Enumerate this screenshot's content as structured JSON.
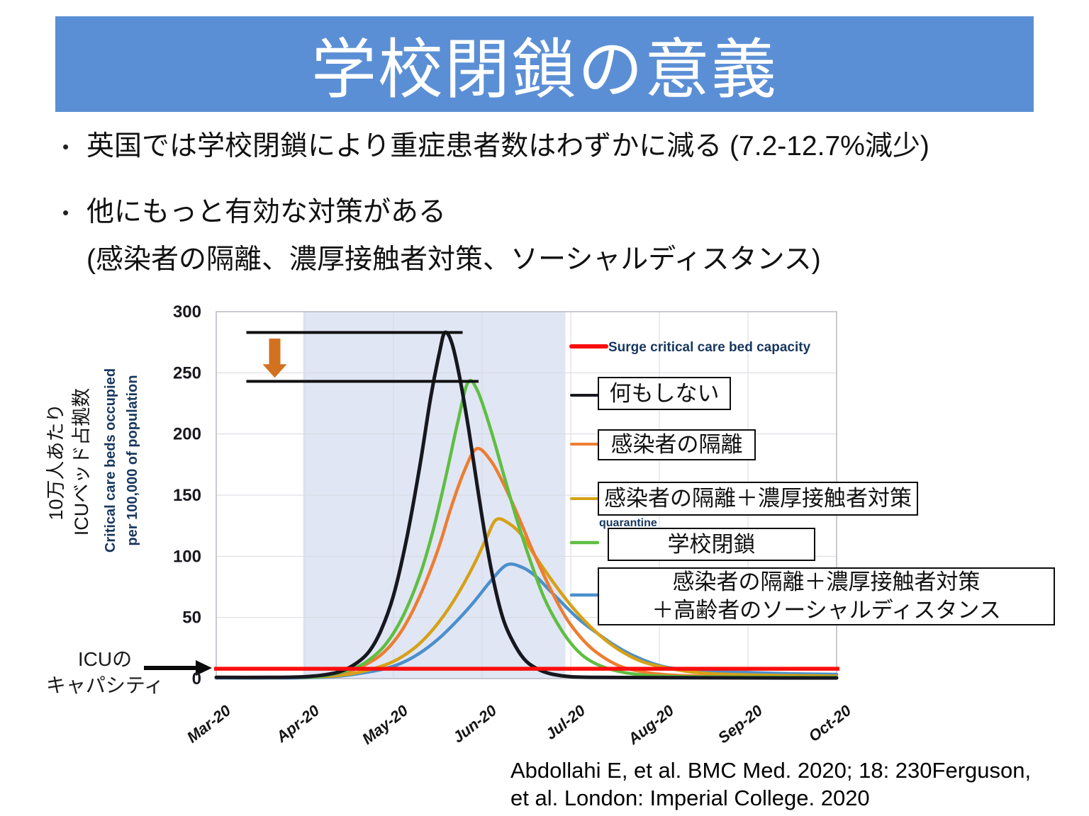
{
  "slide": {
    "title": "学校閉鎖の意義",
    "bullet_marker": "•",
    "bullet1": "英国では学校閉鎖により重症患者数はわずかに減る (7.2-12.7%減少)",
    "bullet2": "他にもっと有効な対策がある",
    "bullet2_detail": "(感染者の隔離、濃厚接触者対策、ソーシャルディスタンス)",
    "citation_line1": "Abdollahi E, et al. BMC Med. 2020; 18: 230Ferguson,",
    "citation_line2": "et al. London: Imperial College. 2020",
    "header_bg": "#5B8FD5",
    "header_text_color": "#FFFFFF"
  },
  "chart_labels": {
    "y_axis_jp_line1": "10万人あたり",
    "y_axis_jp_line2": "ICUベッド占拠数",
    "y_axis_en_line1": "Critical care beds occupied",
    "y_axis_en_line2": "per 100,000 of population",
    "icu_capacity_line1": "ICUの",
    "icu_capacity_line2": "キャパシティ",
    "surge_legend": "Surge critical care bed capacity",
    "covered_text_remnant": "quarantine",
    "legend_box_labels": {
      "do_nothing": "何もしない",
      "case_isolation": "感染者の隔離",
      "isolation_contact": "感染者の隔離＋濃厚接触者対策",
      "school_closure": "学校閉鎖",
      "combo_line1": "感染者の隔離＋濃厚接触者対策",
      "combo_line2": "＋高齢者のソーシャルディスタンス"
    }
  },
  "chart_data": {
    "type": "line",
    "title": "",
    "xlabel": "",
    "ylabel": "Critical care beds occupied per 100,000 of population",
    "x_ticks": [
      "Mar-20",
      "Apr-20",
      "May-20",
      "Jun-20",
      "Jul-20",
      "Aug-20",
      "Sep-20",
      "Oct-20"
    ],
    "x_range": [
      0,
      7
    ],
    "ylim": [
      0,
      300
    ],
    "y_ticks": [
      0,
      50,
      100,
      150,
      200,
      250,
      300
    ],
    "grid": true,
    "highlight_band": {
      "from_x": 0.98,
      "to_x": 3.94,
      "color": "#E0E6F4"
    },
    "capacity_line": {
      "label": "Surge critical care bed capacity",
      "value": 8,
      "color": "#FB0D0D"
    },
    "series_draw_order": [
      4,
      2,
      1,
      3,
      0
    ],
    "series": [
      {
        "id": "do-nothing",
        "label": "何もしない",
        "color": "#17171F",
        "width": 5,
        "peak": {
          "x": 2.58,
          "value": 283
        },
        "points": [
          [
            0,
            1
          ],
          [
            0.6,
            1
          ],
          [
            1.0,
            1.5
          ],
          [
            1.3,
            4
          ],
          [
            1.5,
            9
          ],
          [
            1.7,
            20
          ],
          [
            1.85,
            38
          ],
          [
            2.0,
            68
          ],
          [
            2.15,
            115
          ],
          [
            2.3,
            175
          ],
          [
            2.42,
            230
          ],
          [
            2.52,
            267
          ],
          [
            2.58,
            283
          ],
          [
            2.66,
            274
          ],
          [
            2.75,
            245
          ],
          [
            2.85,
            203
          ],
          [
            2.95,
            155
          ],
          [
            3.05,
            110
          ],
          [
            3.15,
            73
          ],
          [
            3.25,
            46
          ],
          [
            3.38,
            26
          ],
          [
            3.5,
            14
          ],
          [
            3.65,
            7
          ],
          [
            3.8,
            3.5
          ],
          [
            4.0,
            1.5
          ],
          [
            4.3,
            1
          ],
          [
            5.0,
            0.8
          ],
          [
            6.0,
            0.6
          ],
          [
            7,
            0.5
          ]
        ]
      },
      {
        "id": "case-isolation",
        "label": "感染者の隔離",
        "color": "#ED7D31",
        "width": 4.5,
        "peak": {
          "x": 2.94,
          "value": 188
        },
        "points": [
          [
            0,
            1
          ],
          [
            0.8,
            1
          ],
          [
            1.2,
            2
          ],
          [
            1.5,
            6
          ],
          [
            1.7,
            12
          ],
          [
            1.9,
            22
          ],
          [
            2.1,
            40
          ],
          [
            2.3,
            68
          ],
          [
            2.5,
            105
          ],
          [
            2.65,
            140
          ],
          [
            2.8,
            170
          ],
          [
            2.94,
            188
          ],
          [
            3.1,
            178
          ],
          [
            3.25,
            158
          ],
          [
            3.4,
            134
          ],
          [
            3.55,
            108
          ],
          [
            3.7,
            84
          ],
          [
            3.85,
            62
          ],
          [
            4.0,
            44
          ],
          [
            4.2,
            27
          ],
          [
            4.4,
            16
          ],
          [
            4.6,
            9
          ],
          [
            4.85,
            5
          ],
          [
            5.1,
            3
          ],
          [
            5.5,
            2
          ],
          [
            6,
            1.2
          ],
          [
            7,
            0.8
          ]
        ]
      },
      {
        "id": "isolation-contact",
        "label": "感染者の隔離＋濃厚接触者対策",
        "color": "#D6A117",
        "width": 4.5,
        "peak": {
          "x": 3.16,
          "value": 130
        },
        "points": [
          [
            0,
            1
          ],
          [
            0.9,
            1
          ],
          [
            1.3,
            2
          ],
          [
            1.6,
            5
          ],
          [
            1.9,
            11
          ],
          [
            2.1,
            18
          ],
          [
            2.3,
            29
          ],
          [
            2.5,
            45
          ],
          [
            2.7,
            66
          ],
          [
            2.9,
            92
          ],
          [
            3.05,
            115
          ],
          [
            3.16,
            130
          ],
          [
            3.3,
            127
          ],
          [
            3.45,
            117
          ],
          [
            3.6,
            100
          ],
          [
            3.8,
            79
          ],
          [
            4.0,
            60
          ],
          [
            4.2,
            44
          ],
          [
            4.4,
            31
          ],
          [
            4.6,
            21
          ],
          [
            4.8,
            14
          ],
          [
            5.0,
            10
          ],
          [
            5.3,
            6
          ],
          [
            5.6,
            4
          ],
          [
            6.0,
            3
          ],
          [
            6.5,
            2.5
          ],
          [
            7,
            2
          ]
        ]
      },
      {
        "id": "school-closure",
        "label": "学校閉鎖",
        "color": "#5FBE41",
        "width": 4.5,
        "peak": {
          "x": 2.84,
          "value": 242
        },
        "points": [
          [
            0,
            1
          ],
          [
            0.8,
            1
          ],
          [
            1.2,
            2
          ],
          [
            1.5,
            7
          ],
          [
            1.7,
            14
          ],
          [
            1.9,
            27
          ],
          [
            2.1,
            50
          ],
          [
            2.3,
            85
          ],
          [
            2.45,
            122
          ],
          [
            2.6,
            168
          ],
          [
            2.72,
            208
          ],
          [
            2.84,
            242
          ],
          [
            2.95,
            235
          ],
          [
            3.1,
            203
          ],
          [
            3.25,
            165
          ],
          [
            3.4,
            128
          ],
          [
            3.55,
            95
          ],
          [
            3.7,
            66
          ],
          [
            3.85,
            45
          ],
          [
            4.0,
            29
          ],
          [
            4.15,
            18
          ],
          [
            4.35,
            10
          ],
          [
            4.6,
            5
          ],
          [
            4.9,
            2.5
          ],
          [
            5.3,
            1.5
          ],
          [
            6,
            1.2
          ],
          [
            7,
            1
          ]
        ]
      },
      {
        "id": "combo-elderly-distancing",
        "label": "感染者の隔離＋濃厚接触者対策＋高齢者のソーシャルディスタンス",
        "color": "#4B8FCB",
        "width": 4.5,
        "peak": {
          "x": 3.28,
          "value": 93
        },
        "points": [
          [
            0,
            0.5
          ],
          [
            0.9,
            0.5
          ],
          [
            1.3,
            1.5
          ],
          [
            1.6,
            4
          ],
          [
            1.9,
            8
          ],
          [
            2.1,
            13
          ],
          [
            2.3,
            21
          ],
          [
            2.5,
            32
          ],
          [
            2.7,
            46
          ],
          [
            2.9,
            62
          ],
          [
            3.1,
            80
          ],
          [
            3.28,
            93
          ],
          [
            3.45,
            91
          ],
          [
            3.6,
            84
          ],
          [
            3.75,
            73
          ],
          [
            3.9,
            62
          ],
          [
            4.1,
            48
          ],
          [
            4.3,
            37
          ],
          [
            4.5,
            27
          ],
          [
            4.7,
            19
          ],
          [
            4.9,
            13
          ],
          [
            5.1,
            9
          ],
          [
            5.4,
            7
          ],
          [
            5.7,
            5.5
          ],
          [
            6.0,
            5
          ],
          [
            6.5,
            4
          ],
          [
            7,
            3.5
          ]
        ]
      }
    ],
    "annotations": {
      "peak_lines": [
        {
          "value": 283,
          "from_x": 0.34,
          "to_x": 2.78
        },
        {
          "value": 243,
          "from_x": 0.34,
          "to_x": 2.96
        }
      ],
      "reduction_arrow": {
        "x": 0.66,
        "from_value": 278,
        "to_value": 246,
        "color": "#D2711F"
      }
    }
  }
}
